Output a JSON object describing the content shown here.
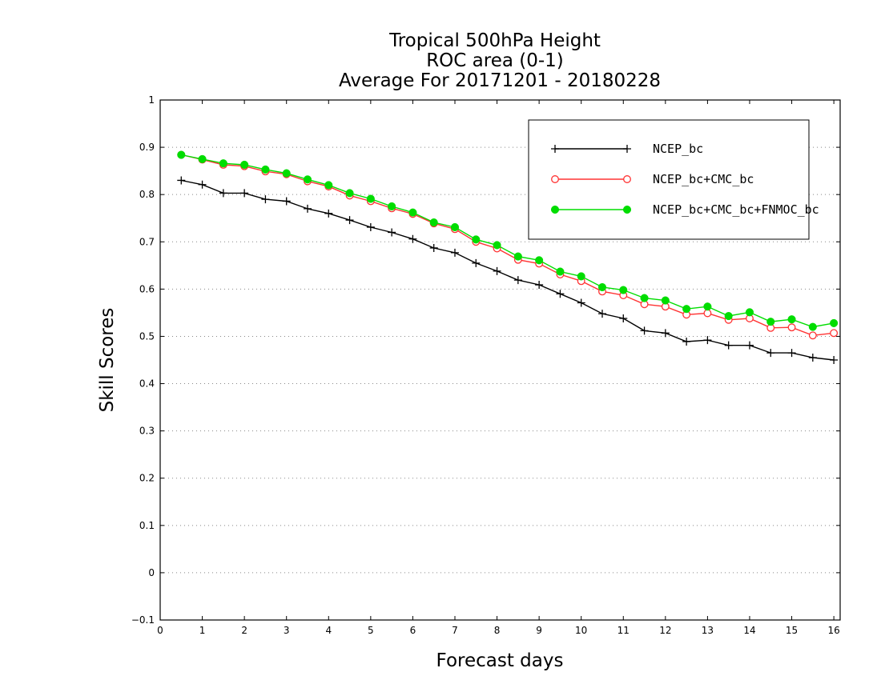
{
  "chart_data": {
    "type": "line",
    "title_lines": [
      "Tropical 500hPa Height",
      "ROC area (0-1)",
      "Average For 20171201 - 20180228"
    ],
    "xlabel": "Forecast days",
    "ylabel": "Skill Scores",
    "xlim": [
      0,
      16.15
    ],
    "ylim": [
      -0.1,
      1
    ],
    "x_ticks": [
      "0",
      "1",
      "2",
      "3",
      "4",
      "5",
      "6",
      "7",
      "8",
      "9",
      "10",
      "11",
      "12",
      "13",
      "14",
      "15",
      "16"
    ],
    "y_ticks": [
      "−0.1",
      "0",
      "0.1",
      "0.2",
      "0.3",
      "0.4",
      "0.5",
      "0.6",
      "0.7",
      "0.8",
      "0.9",
      "1"
    ],
    "y_tick_values": [
      -0.1,
      0,
      0.1,
      0.2,
      0.3,
      0.4,
      0.5,
      0.6,
      0.7,
      0.8,
      0.9,
      1
    ],
    "grid": "horizontal-dotted",
    "legend_position": "top-right",
    "x": [
      0.5,
      1,
      1.5,
      2,
      2.5,
      3,
      3.5,
      4,
      4.5,
      5,
      5.5,
      6,
      6.5,
      7,
      7.5,
      8,
      8.5,
      9,
      9.5,
      10,
      10.5,
      11,
      11.5,
      12,
      12.5,
      13,
      13.5,
      14,
      14.5,
      15,
      15.5,
      16
    ],
    "series": [
      {
        "name": "NCEP_bc",
        "color": "#000000",
        "marker": "plus",
        "values": [
          0.83,
          0.821,
          0.803,
          0.803,
          0.79,
          0.786,
          0.77,
          0.76,
          0.746,
          0.731,
          0.72,
          0.706,
          0.687,
          0.677,
          0.655,
          0.638,
          0.619,
          0.609,
          0.59,
          0.571,
          0.548,
          0.538,
          0.512,
          0.507,
          0.489,
          0.492,
          0.481,
          0.481,
          0.465,
          0.465,
          0.455,
          0.45
        ]
      },
      {
        "name": "NCEP_bc+CMC_bc",
        "color": "#ff3333",
        "marker": "open-circle",
        "values": [
          0.884,
          0.874,
          0.863,
          0.86,
          0.849,
          0.843,
          0.828,
          0.817,
          0.798,
          0.786,
          0.771,
          0.759,
          0.739,
          0.727,
          0.7,
          0.686,
          0.662,
          0.654,
          0.631,
          0.617,
          0.595,
          0.587,
          0.568,
          0.563,
          0.546,
          0.549,
          0.535,
          0.538,
          0.518,
          0.519,
          0.502,
          0.507
        ]
      },
      {
        "name": "NCEP_bc+CMC_bc+FNMOC_bc",
        "color": "#00dd00",
        "marker": "filled-circle",
        "values": [
          0.884,
          0.875,
          0.866,
          0.863,
          0.853,
          0.845,
          0.832,
          0.82,
          0.803,
          0.791,
          0.775,
          0.762,
          0.741,
          0.731,
          0.705,
          0.693,
          0.669,
          0.661,
          0.637,
          0.627,
          0.604,
          0.598,
          0.581,
          0.576,
          0.558,
          0.563,
          0.543,
          0.551,
          0.531,
          0.536,
          0.52,
          0.528
        ]
      }
    ]
  }
}
